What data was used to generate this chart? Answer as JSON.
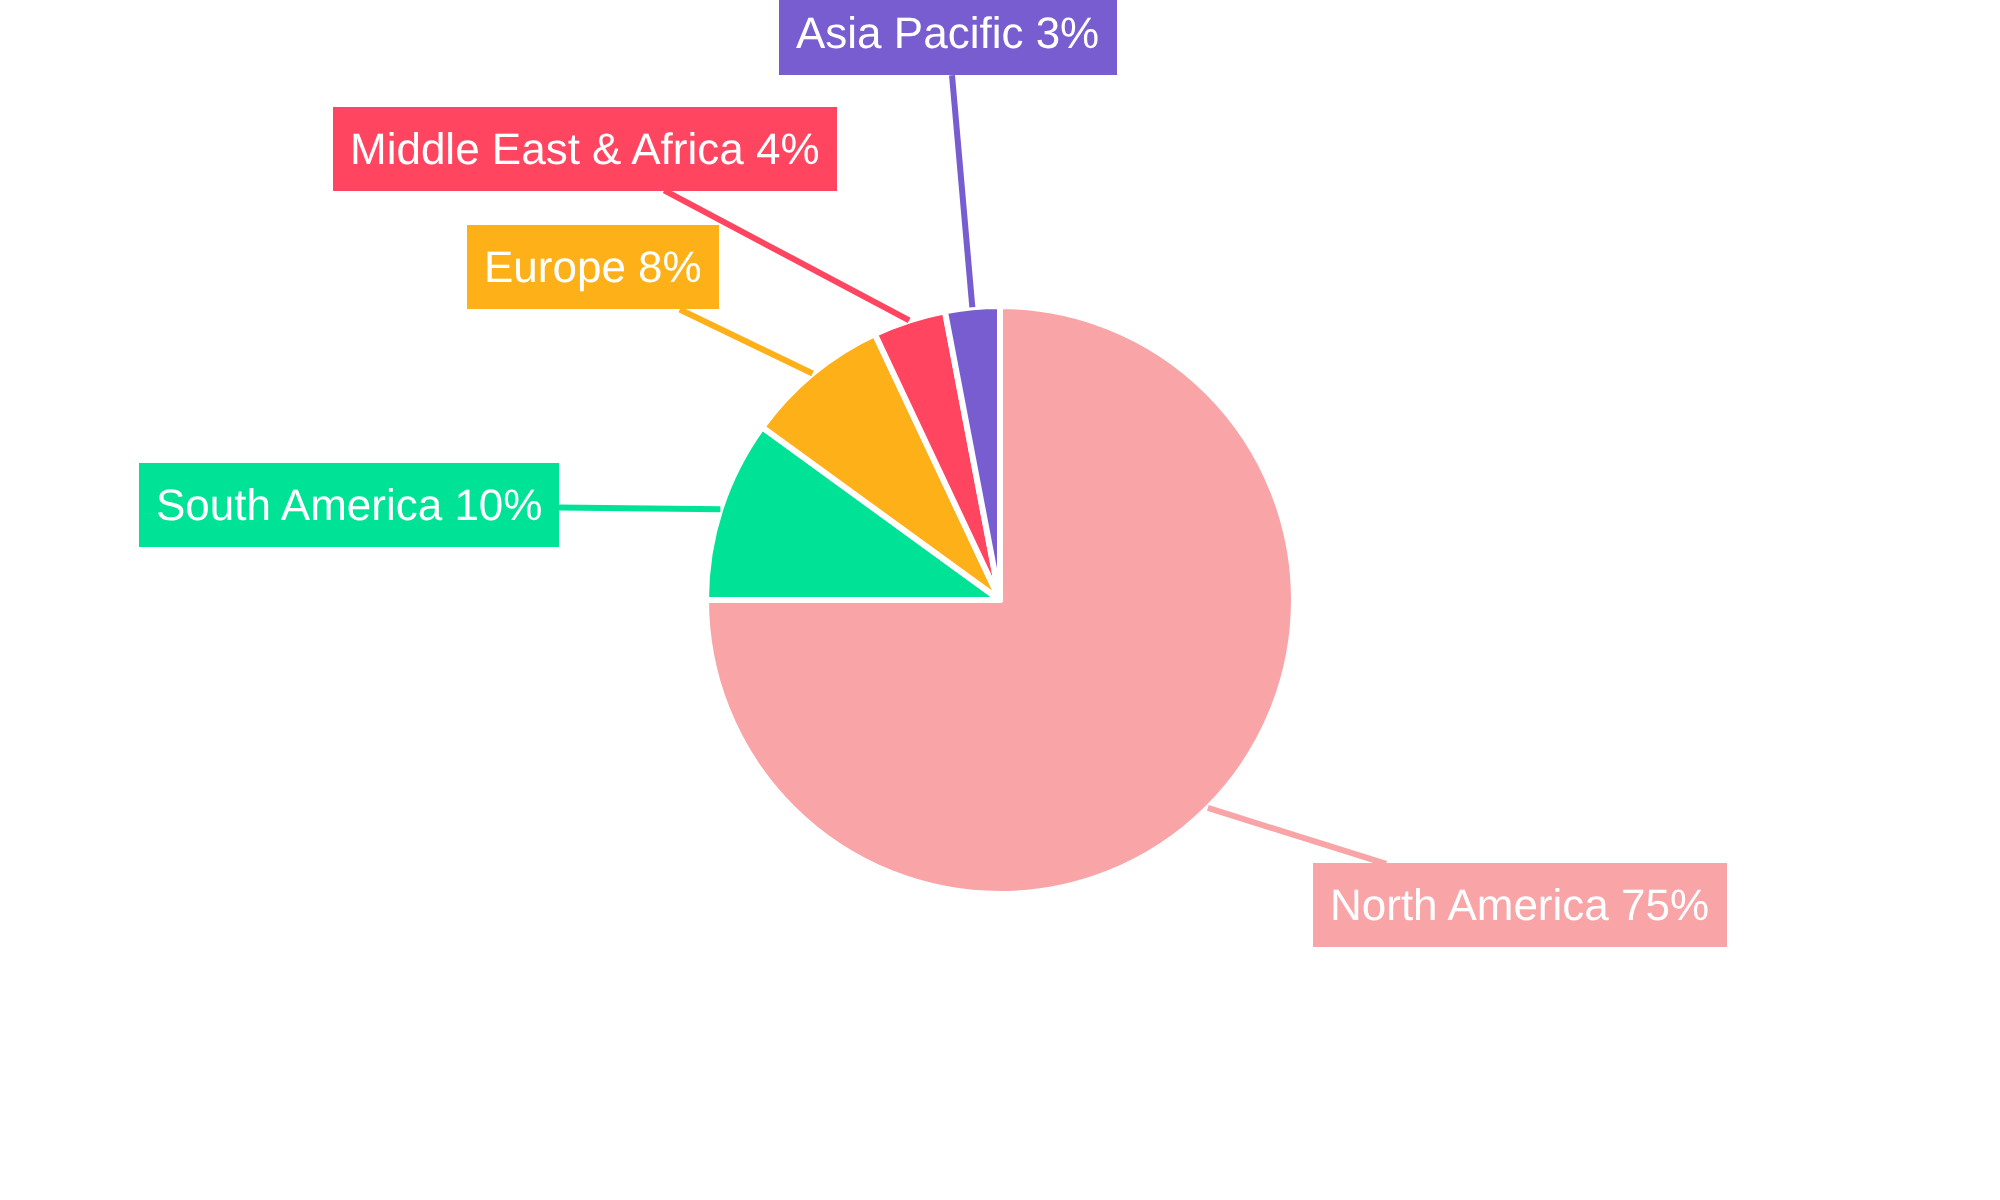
{
  "chart_data": {
    "type": "pie",
    "categories": [
      "North America",
      "South America",
      "Europe",
      "Middle East & Africa",
      "Asia Pacific"
    ],
    "values": [
      75,
      10,
      8,
      4,
      3
    ],
    "value_labels": [
      "75%",
      "10%",
      "8%",
      "4%",
      "3%"
    ],
    "colors": [
      "#f9a5a7",
      "#00e396",
      "#feb019",
      "#ff4560",
      "#775dd0"
    ],
    "legend": false
  }
}
